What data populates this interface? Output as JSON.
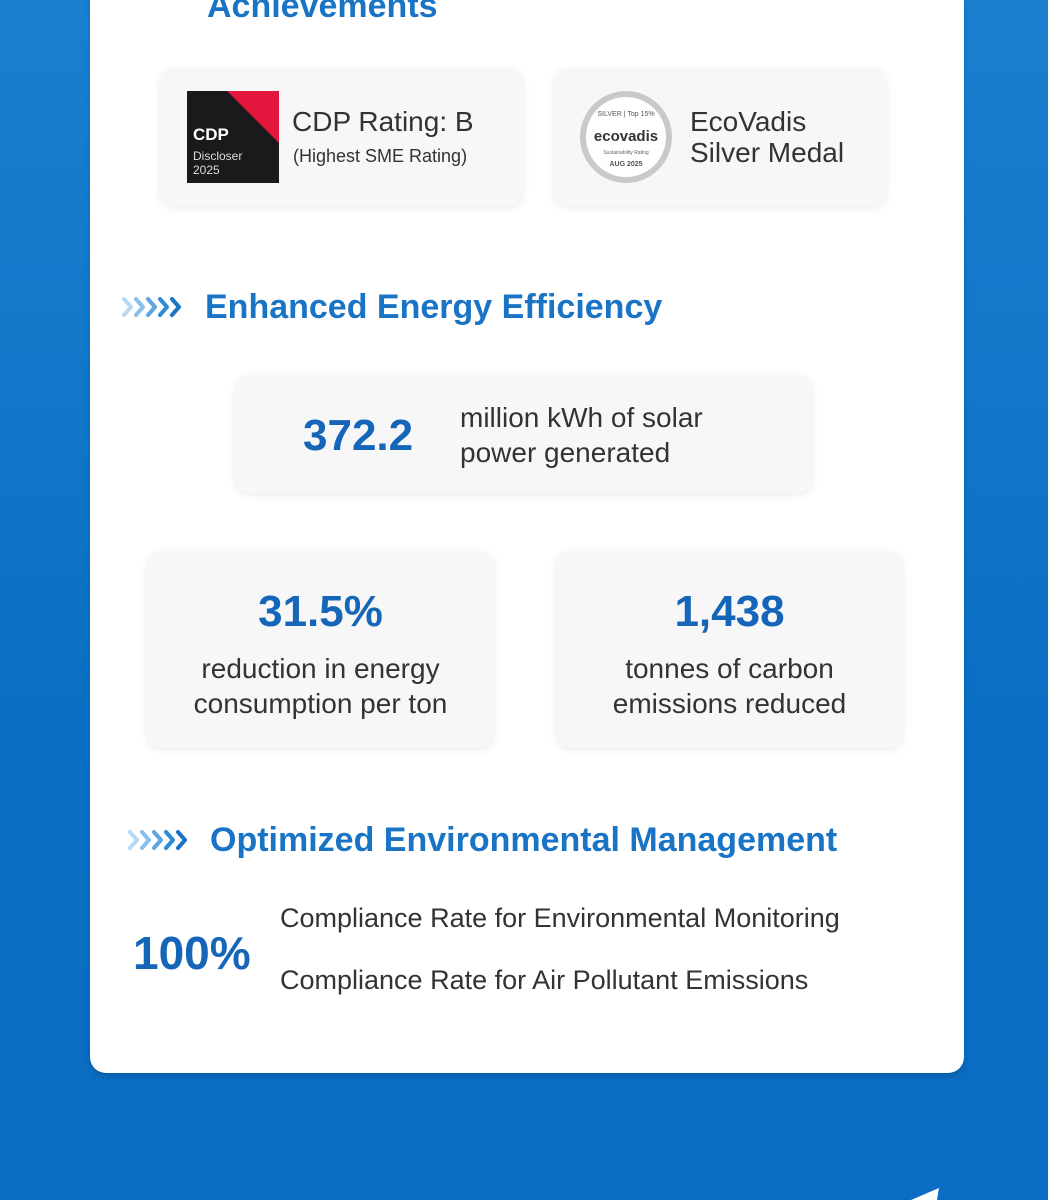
{
  "achievements": {
    "title": "Achievements",
    "cdp": {
      "badge_logo": "CDP",
      "badge_label": "Discloser",
      "badge_year": "2025",
      "title": "CDP Rating: B",
      "note": "(Highest SME Rating)"
    },
    "ecovadis": {
      "medal_top": "SILVER | Top 15%",
      "medal_logo": "ecovadis",
      "medal_label": "Sustainability Rating",
      "medal_date": "AUG 2025",
      "lines": [
        "EcoVadis",
        "Silver Medal"
      ]
    }
  },
  "energy": {
    "title": "Enhanced Energy Efficiency",
    "stats": [
      {
        "value": "372.2",
        "lines": [
          "million kWh of solar",
          "power generated"
        ]
      },
      {
        "value": "31.5%",
        "lines": [
          "reduction in energy",
          "consumption per ton"
        ]
      },
      {
        "value": "1,438",
        "lines": [
          "tonnes of carbon",
          "emissions reduced"
        ]
      }
    ]
  },
  "environment": {
    "title": "Optimized Environmental Management",
    "value": "100%",
    "items": [
      "Compliance Rate for Environmental Monitoring",
      "Compliance Rate for Air Pollutant Emissions"
    ]
  }
}
